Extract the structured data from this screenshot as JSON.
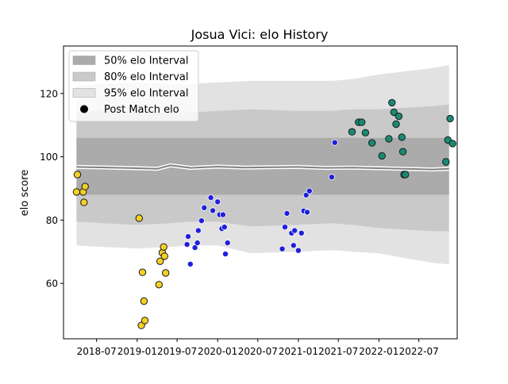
{
  "chart_data": {
    "type": "scatter",
    "title": "Josua Vici: elo History",
    "xlabel": "",
    "ylabel": "elo score",
    "xlim": [
      "2018-02-01",
      "2022-12-22"
    ],
    "ylim": [
      42.5,
      135
    ],
    "x_ticks": [
      "2018-07",
      "2019-01",
      "2019-07",
      "2020-01",
      "2020-07",
      "2021-01",
      "2021-07",
      "2022-01",
      "2022-07"
    ],
    "y_ticks": [
      60,
      80,
      100,
      120
    ],
    "grid": false,
    "legend_position": "top-left",
    "legend": [
      {
        "label": "50% elo Interval",
        "kind": "band50"
      },
      {
        "label": "80% elo Interval",
        "kind": "band80"
      },
      {
        "label": "95% elo Interval",
        "kind": "band95"
      },
      {
        "label": "Post Match elo",
        "kind": "marker"
      }
    ],
    "colors": {
      "band50": "#ababab",
      "band80": "#c9c9c9",
      "band95": "#e2e2e2",
      "mean_line": "#808080",
      "mean_halo": "#ffffff",
      "early": "#f2d024",
      "middle": "#1f1fdc",
      "late": "#1a8a73",
      "marker_edge": "#1a1a1a"
    },
    "mean_elo": {
      "x": [
        "2018-04-01",
        "2018-06-01",
        "2018-09-01",
        "2019-01-01",
        "2019-04-01",
        "2019-06-01",
        "2019-09-01",
        "2020-01-01",
        "2020-05-01",
        "2020-09-01",
        "2021-01-01",
        "2021-05-01",
        "2021-09-01",
        "2022-01-01",
        "2022-05-01",
        "2022-09-01",
        "2022-11-15"
      ],
      "y": [
        96.8,
        96.7,
        96.6,
        96.4,
        96.2,
        97.3,
        96.5,
        96.9,
        96.6,
        96.7,
        96.8,
        96.5,
        96.6,
        96.4,
        96.2,
        96.0,
        96.2
      ]
    },
    "bands": {
      "x": [
        "2018-04-01",
        "2018-08-01",
        "2019-01-01",
        "2019-06-01",
        "2019-09-01",
        "2020-01-01",
        "2020-06-01",
        "2021-01-01",
        "2021-06-01",
        "2021-09-01",
        "2022-01-01",
        "2022-05-01",
        "2022-09-01",
        "2022-11-15"
      ],
      "p50_low": [
        88,
        88,
        88,
        88,
        88,
        88,
        88,
        88,
        88,
        88,
        88,
        88,
        88,
        88
      ],
      "p50_high": [
        106,
        106,
        106,
        106,
        106,
        106,
        106,
        106,
        106,
        106,
        106,
        106,
        106,
        106
      ],
      "p80_low": [
        79.5,
        79,
        78.5,
        79,
        79.5,
        79.5,
        78,
        78.5,
        79,
        78.5,
        77.5,
        77,
        76.5,
        76.5
      ],
      "p80_high": [
        114,
        114.5,
        114.5,
        114,
        114,
        114.5,
        115,
        114.5,
        114.5,
        115,
        115,
        115.5,
        116,
        116.5
      ],
      "p95_low": [
        72,
        71.5,
        71,
        71.5,
        72,
        72,
        69.5,
        70,
        70.5,
        70,
        69.5,
        68,
        66.5,
        66
      ],
      "p95_high": [
        122.5,
        123,
        123.5,
        123,
        123,
        123.5,
        124,
        124,
        124,
        124.5,
        126,
        127,
        128,
        129
      ]
    },
    "series": [
      {
        "x": [
          "2018-04-01",
          "2018-04-05",
          "2018-05-01",
          "2018-05-05",
          "2018-05-10",
          "2019-01-10",
          "2019-01-20",
          "2019-01-25",
          "2019-02-01",
          "2019-02-05",
          "2019-04-10",
          "2019-04-15",
          "2019-04-25",
          "2019-05-01",
          "2019-05-05",
          "2019-05-10"
        ],
        "y": [
          88.9,
          94.4,
          88.9,
          85.6,
          90.6,
          80.6,
          46.7,
          63.5,
          54.4,
          48.3,
          59.6,
          67.0,
          69.7,
          71.5,
          68.6,
          63.3
        ]
      },
      {
        "x": [
          "2019-08-15",
          "2019-08-20",
          "2019-08-30",
          "2019-09-20",
          "2019-10-01",
          "2019-10-05",
          "2019-10-20",
          "2019-11-01",
          "2019-12-01",
          "2019-12-10",
          "2020-01-01",
          "2020-01-10",
          "2020-01-20",
          "2020-01-25",
          "2020-02-01",
          "2020-02-05",
          "2020-02-15",
          "2020-10-20",
          "2020-11-01",
          "2020-11-10",
          "2020-12-01",
          "2020-12-10",
          "2020-12-15",
          "2021-01-01",
          "2021-01-15",
          "2021-01-25",
          "2021-02-05",
          "2021-02-10",
          "2021-02-20",
          "2021-06-01",
          "2021-06-15"
        ],
        "y": [
          72.3,
          74.8,
          66.1,
          71.3,
          72.8,
          76.7,
          79.8,
          83.9,
          87.1,
          83.0,
          85.8,
          81.7,
          77.3,
          81.7,
          77.8,
          69.3,
          72.8,
          70.9,
          77.8,
          82.1,
          75.9,
          72.0,
          76.7,
          70.4,
          75.9,
          82.9,
          87.9,
          82.5,
          89.2,
          93.6,
          104.5
        ]
      },
      {
        "x": [
          "2021-09-01",
          "2021-10-01",
          "2021-10-15",
          "2021-11-01",
          "2021-12-01",
          "2022-01-15",
          "2022-02-15",
          "2022-03-01",
          "2022-03-10",
          "2022-03-20",
          "2022-04-01",
          "2022-04-15",
          "2022-04-20",
          "2022-04-25",
          "2022-05-01",
          "2022-11-01",
          "2022-11-10",
          "2022-11-20",
          "2022-12-01"
        ],
        "y": [
          107.9,
          110.9,
          110.9,
          107.6,
          104.4,
          100.3,
          105.7,
          117.1,
          114.1,
          110.3,
          112.8,
          106.2,
          101.6,
          94.4,
          94.4,
          98.4,
          105.3,
          112.1,
          104.2
        ]
      }
    ]
  }
}
